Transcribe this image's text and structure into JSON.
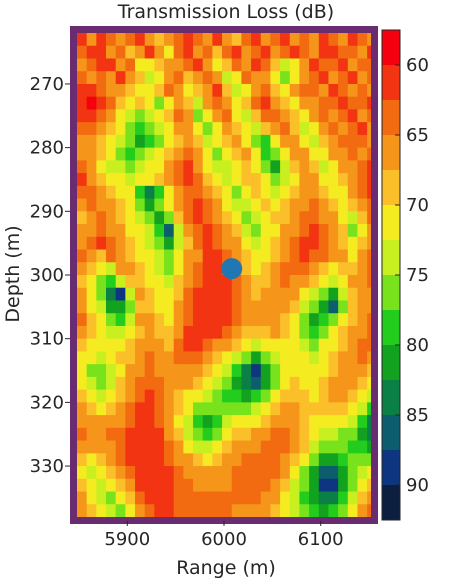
{
  "chart_data": {
    "type": "heatmap",
    "title": "Transmission Loss (dB)",
    "xlabel": "Range (m)",
    "ylabel": "Depth (m)",
    "xlim": [
      5848,
      6152
    ],
    "ylim": [
      262,
      338
    ],
    "y_inverted": true,
    "x_ticks": [
      5900,
      6000,
      6100
    ],
    "y_ticks": [
      270,
      280,
      290,
      300,
      310,
      320,
      330
    ],
    "grid_x_start": 5848,
    "grid_y_start": 262,
    "cell_width": 10,
    "cell_height": 2,
    "values": [
      [
        62,
        66,
        61,
        63,
        67,
        64,
        62,
        65,
        69,
        66,
        63,
        61,
        64,
        67,
        62,
        65,
        68,
        63,
        61,
        66,
        64,
        62,
        67,
        63,
        65,
        61,
        64,
        66,
        62,
        63,
        65
      ],
      [
        64,
        62,
        60,
        65,
        63,
        68,
        66,
        61,
        67,
        70,
        64,
        62,
        66,
        63,
        69,
        64,
        61,
        65,
        63,
        62,
        67,
        64,
        61,
        63,
        66,
        62,
        60,
        64,
        63,
        65,
        62
      ],
      [
        66,
        63,
        62,
        61,
        66,
        64,
        70,
        72,
        68,
        65,
        67,
        63,
        61,
        65,
        71,
        68,
        64,
        66,
        62,
        64,
        69,
        73,
        70,
        65,
        62,
        64,
        63,
        61,
        66,
        64,
        63
      ],
      [
        63,
        67,
        64,
        66,
        62,
        65,
        69,
        74,
        71,
        66,
        64,
        68,
        65,
        64,
        67,
        73,
        70,
        63,
        65,
        66,
        71,
        76,
        72,
        66,
        64,
        61,
        65,
        63,
        62,
        67,
        64
      ],
      [
        61,
        60,
        63,
        65,
        66,
        68,
        72,
        70,
        69,
        64,
        66,
        71,
        68,
        65,
        62,
        69,
        74,
        71,
        66,
        63,
        68,
        72,
        67,
        64,
        63,
        66,
        62,
        64,
        65,
        63,
        66
      ],
      [
        60,
        59,
        62,
        64,
        68,
        71,
        69,
        72,
        75,
        70,
        66,
        69,
        73,
        66,
        64,
        67,
        72,
        69,
        64,
        62,
        65,
        68,
        70,
        66,
        65,
        63,
        64,
        62,
        63,
        64,
        62
      ],
      [
        62,
        61,
        64,
        66,
        70,
        73,
        76,
        74,
        72,
        68,
        64,
        67,
        75,
        72,
        66,
        64,
        70,
        73,
        68,
        64,
        63,
        66,
        69,
        71,
        67,
        64,
        66,
        63,
        62,
        65,
        64
      ],
      [
        64,
        63,
        66,
        68,
        72,
        75,
        78,
        76,
        73,
        70,
        66,
        65,
        71,
        76,
        70,
        67,
        68,
        72,
        74,
        69,
        66,
        64,
        68,
        73,
        70,
        66,
        64,
        65,
        63,
        62,
        66
      ],
      [
        67,
        65,
        68,
        70,
        74,
        77,
        80,
        78,
        75,
        71,
        68,
        66,
        69,
        74,
        72,
        68,
        66,
        70,
        76,
        78,
        72,
        67,
        65,
        70,
        74,
        69,
        66,
        64,
        63,
        64,
        65
      ],
      [
        65,
        66,
        69,
        72,
        76,
        79,
        77,
        74,
        72,
        69,
        66,
        64,
        67,
        72,
        75,
        71,
        68,
        67,
        72,
        79,
        76,
        70,
        66,
        67,
        72,
        71,
        67,
        65,
        64,
        66,
        63
      ],
      [
        63,
        67,
        71,
        74,
        73,
        76,
        74,
        72,
        70,
        67,
        64,
        62,
        65,
        70,
        74,
        73,
        70,
        68,
        70,
        75,
        80,
        74,
        69,
        66,
        69,
        73,
        70,
        66,
        65,
        64,
        62
      ],
      [
        62,
        65,
        68,
        70,
        71,
        73,
        72,
        70,
        68,
        65,
        63,
        62,
        64,
        68,
        71,
        74,
        72,
        69,
        68,
        72,
        77,
        73,
        70,
        67,
        66,
        70,
        72,
        68,
        66,
        63,
        61
      ],
      [
        64,
        63,
        66,
        68,
        70,
        72,
        78,
        84,
        79,
        72,
        67,
        63,
        63,
        66,
        69,
        72,
        75,
        71,
        69,
        70,
        74,
        71,
        68,
        66,
        65,
        68,
        71,
        70,
        67,
        64,
        62
      ],
      [
        66,
        64,
        65,
        67,
        69,
        71,
        76,
        80,
        76,
        70,
        66,
        63,
        62,
        64,
        67,
        70,
        73,
        74,
        71,
        69,
        71,
        69,
        67,
        65,
        64,
        66,
        69,
        72,
        69,
        66,
        63
      ],
      [
        68,
        66,
        64,
        66,
        68,
        70,
        73,
        76,
        82,
        75,
        68,
        64,
        62,
        63,
        65,
        68,
        71,
        75,
        73,
        70,
        69,
        68,
        66,
        64,
        63,
        65,
        67,
        70,
        73,
        68,
        64
      ],
      [
        67,
        65,
        63,
        65,
        67,
        70,
        72,
        74,
        78,
        86,
        73,
        66,
        63,
        62,
        64,
        66,
        69,
        73,
        76,
        72,
        70,
        67,
        65,
        63,
        62,
        64,
        66,
        69,
        75,
        71,
        66
      ],
      [
        65,
        64,
        62,
        64,
        66,
        69,
        71,
        73,
        76,
        80,
        74,
        68,
        64,
        62,
        63,
        65,
        67,
        71,
        74,
        71,
        69,
        66,
        64,
        62,
        62,
        63,
        65,
        68,
        72,
        69,
        65
      ],
      [
        64,
        66,
        68,
        63,
        65,
        68,
        70,
        72,
        74,
        77,
        72,
        67,
        65,
        62,
        62,
        64,
        66,
        69,
        72,
        70,
        68,
        65,
        63,
        62,
        63,
        64,
        66,
        67,
        70,
        67,
        64
      ],
      [
        66,
        69,
        72,
        74,
        66,
        67,
        69,
        71,
        73,
        75,
        70,
        66,
        64,
        62,
        61,
        63,
        65,
        68,
        70,
        69,
        67,
        64,
        63,
        64,
        66,
        68,
        70,
        69,
        68,
        66,
        63
      ],
      [
        68,
        71,
        75,
        79,
        73,
        68,
        68,
        70,
        72,
        73,
        69,
        65,
        63,
        61,
        61,
        62,
        64,
        67,
        69,
        68,
        66,
        64,
        65,
        67,
        69,
        72,
        74,
        71,
        67,
        65,
        64
      ],
      [
        67,
        72,
        77,
        83,
        88,
        74,
        67,
        69,
        71,
        72,
        68,
        64,
        62,
        61,
        60,
        62,
        63,
        66,
        68,
        67,
        65,
        65,
        67,
        70,
        73,
        77,
        80,
        74,
        68,
        66,
        65
      ],
      [
        65,
        70,
        74,
        80,
        82,
        75,
        68,
        68,
        70,
        71,
        67,
        63,
        62,
        60,
        60,
        61,
        63,
        65,
        67,
        66,
        65,
        66,
        69,
        73,
        77,
        81,
        85,
        76,
        69,
        67,
        66
      ],
      [
        64,
        68,
        72,
        76,
        78,
        73,
        67,
        67,
        69,
        70,
        66,
        63,
        61,
        60,
        61,
        62,
        64,
        66,
        67,
        66,
        66,
        68,
        71,
        75,
        80,
        79,
        77,
        72,
        68,
        66,
        64
      ],
      [
        66,
        69,
        71,
        73,
        74,
        71,
        68,
        66,
        68,
        69,
        65,
        62,
        61,
        61,
        62,
        64,
        66,
        68,
        69,
        68,
        67,
        69,
        72,
        76,
        78,
        75,
        72,
        69,
        67,
        65,
        63
      ],
      [
        68,
        70,
        72,
        71,
        70,
        69,
        67,
        65,
        67,
        68,
        64,
        62,
        62,
        63,
        65,
        67,
        69,
        71,
        73,
        72,
        70,
        70,
        72,
        74,
        75,
        72,
        70,
        68,
        66,
        64,
        63
      ],
      [
        70,
        72,
        74,
        72,
        69,
        68,
        66,
        64,
        66,
        67,
        64,
        63,
        64,
        66,
        68,
        70,
        73,
        76,
        80,
        77,
        73,
        71,
        71,
        72,
        73,
        71,
        69,
        67,
        65,
        64,
        65
      ],
      [
        72,
        75,
        77,
        74,
        70,
        67,
        65,
        63,
        65,
        66,
        65,
        65,
        66,
        68,
        71,
        74,
        78,
        83,
        88,
        82,
        76,
        72,
        70,
        71,
        72,
        70,
        68,
        66,
        65,
        66,
        68
      ],
      [
        71,
        74,
        76,
        73,
        69,
        66,
        64,
        63,
        64,
        66,
        66,
        67,
        69,
        71,
        74,
        77,
        80,
        84,
        86,
        80,
        75,
        71,
        69,
        70,
        71,
        69,
        67,
        66,
        66,
        68,
        71
      ],
      [
        69,
        72,
        73,
        71,
        68,
        65,
        63,
        62,
        64,
        66,
        68,
        70,
        72,
        74,
        76,
        78,
        79,
        80,
        79,
        76,
        72,
        69,
        68,
        69,
        70,
        68,
        67,
        67,
        68,
        71,
        74
      ],
      [
        67,
        69,
        70,
        69,
        66,
        64,
        62,
        62,
        63,
        66,
        69,
        72,
        75,
        77,
        77,
        76,
        75,
        75,
        74,
        72,
        69,
        67,
        67,
        68,
        69,
        68,
        68,
        69,
        71,
        74,
        78
      ],
      [
        65,
        66,
        67,
        66,
        65,
        63,
        62,
        61,
        63,
        66,
        70,
        74,
        78,
        80,
        78,
        74,
        72,
        71,
        70,
        68,
        66,
        65,
        66,
        68,
        70,
        70,
        71,
        72,
        74,
        78,
        83
      ],
      [
        64,
        65,
        65,
        64,
        64,
        62,
        61,
        61,
        62,
        65,
        69,
        73,
        77,
        79,
        76,
        72,
        69,
        68,
        67,
        65,
        64,
        64,
        65,
        68,
        71,
        73,
        74,
        75,
        77,
        80,
        84
      ],
      [
        66,
        67,
        66,
        65,
        63,
        62,
        61,
        60,
        62,
        64,
        67,
        70,
        73,
        74,
        72,
        69,
        67,
        66,
        65,
        64,
        63,
        64,
        66,
        69,
        73,
        76,
        77,
        77,
        78,
        79,
        80
      ],
      [
        68,
        70,
        69,
        67,
        64,
        62,
        61,
        60,
        61,
        63,
        65,
        67,
        69,
        70,
        69,
        67,
        65,
        64,
        64,
        63,
        63,
        65,
        68,
        72,
        76,
        80,
        81,
        79,
        77,
        76,
        75
      ],
      [
        70,
        73,
        72,
        69,
        66,
        63,
        61,
        60,
        61,
        62,
        64,
        65,
        66,
        67,
        67,
        66,
        64,
        63,
        63,
        63,
        64,
        67,
        71,
        75,
        80,
        85,
        86,
        81,
        76,
        73,
        71
      ],
      [
        69,
        72,
        74,
        71,
        68,
        65,
        62,
        61,
        61,
        62,
        63,
        64,
        65,
        65,
        65,
        65,
        64,
        63,
        63,
        64,
        66,
        69,
        73,
        77,
        82,
        88,
        89,
        82,
        75,
        71,
        68
      ],
      [
        67,
        70,
        73,
        75,
        72,
        68,
        64,
        62,
        61,
        62,
        63,
        64,
        64,
        64,
        64,
        64,
        64,
        64,
        64,
        65,
        67,
        70,
        74,
        78,
        81,
        84,
        83,
        78,
        73,
        69,
        66
      ],
      [
        65,
        68,
        71,
        74,
        75,
        71,
        67,
        64,
        62,
        62,
        63,
        63,
        63,
        63,
        64,
        64,
        65,
        65,
        65,
        66,
        68,
        71,
        74,
        77,
        79,
        80,
        78,
        75,
        71,
        67,
        64
      ]
    ],
    "marker": {
      "x": 6008,
      "y": 299
    },
    "colorbar": {
      "min": 57.5,
      "max": 92.5,
      "levels": 14,
      "ticks": [
        60,
        65,
        70,
        75,
        80,
        85,
        90
      ]
    },
    "colors": {
      "frame": "#6a2c70",
      "marker": "#1f77b4",
      "scale": [
        "#f5000f",
        "#f23412",
        "#f36b10",
        "#f5961a",
        "#fbbf2a",
        "#f4ec20",
        "#c8ef20",
        "#78e21d",
        "#23cd1e",
        "#12a21f",
        "#0a8046",
        "#0c5d6e",
        "#0e3580",
        "#0c1f3f",
        "#000000"
      ]
    }
  }
}
